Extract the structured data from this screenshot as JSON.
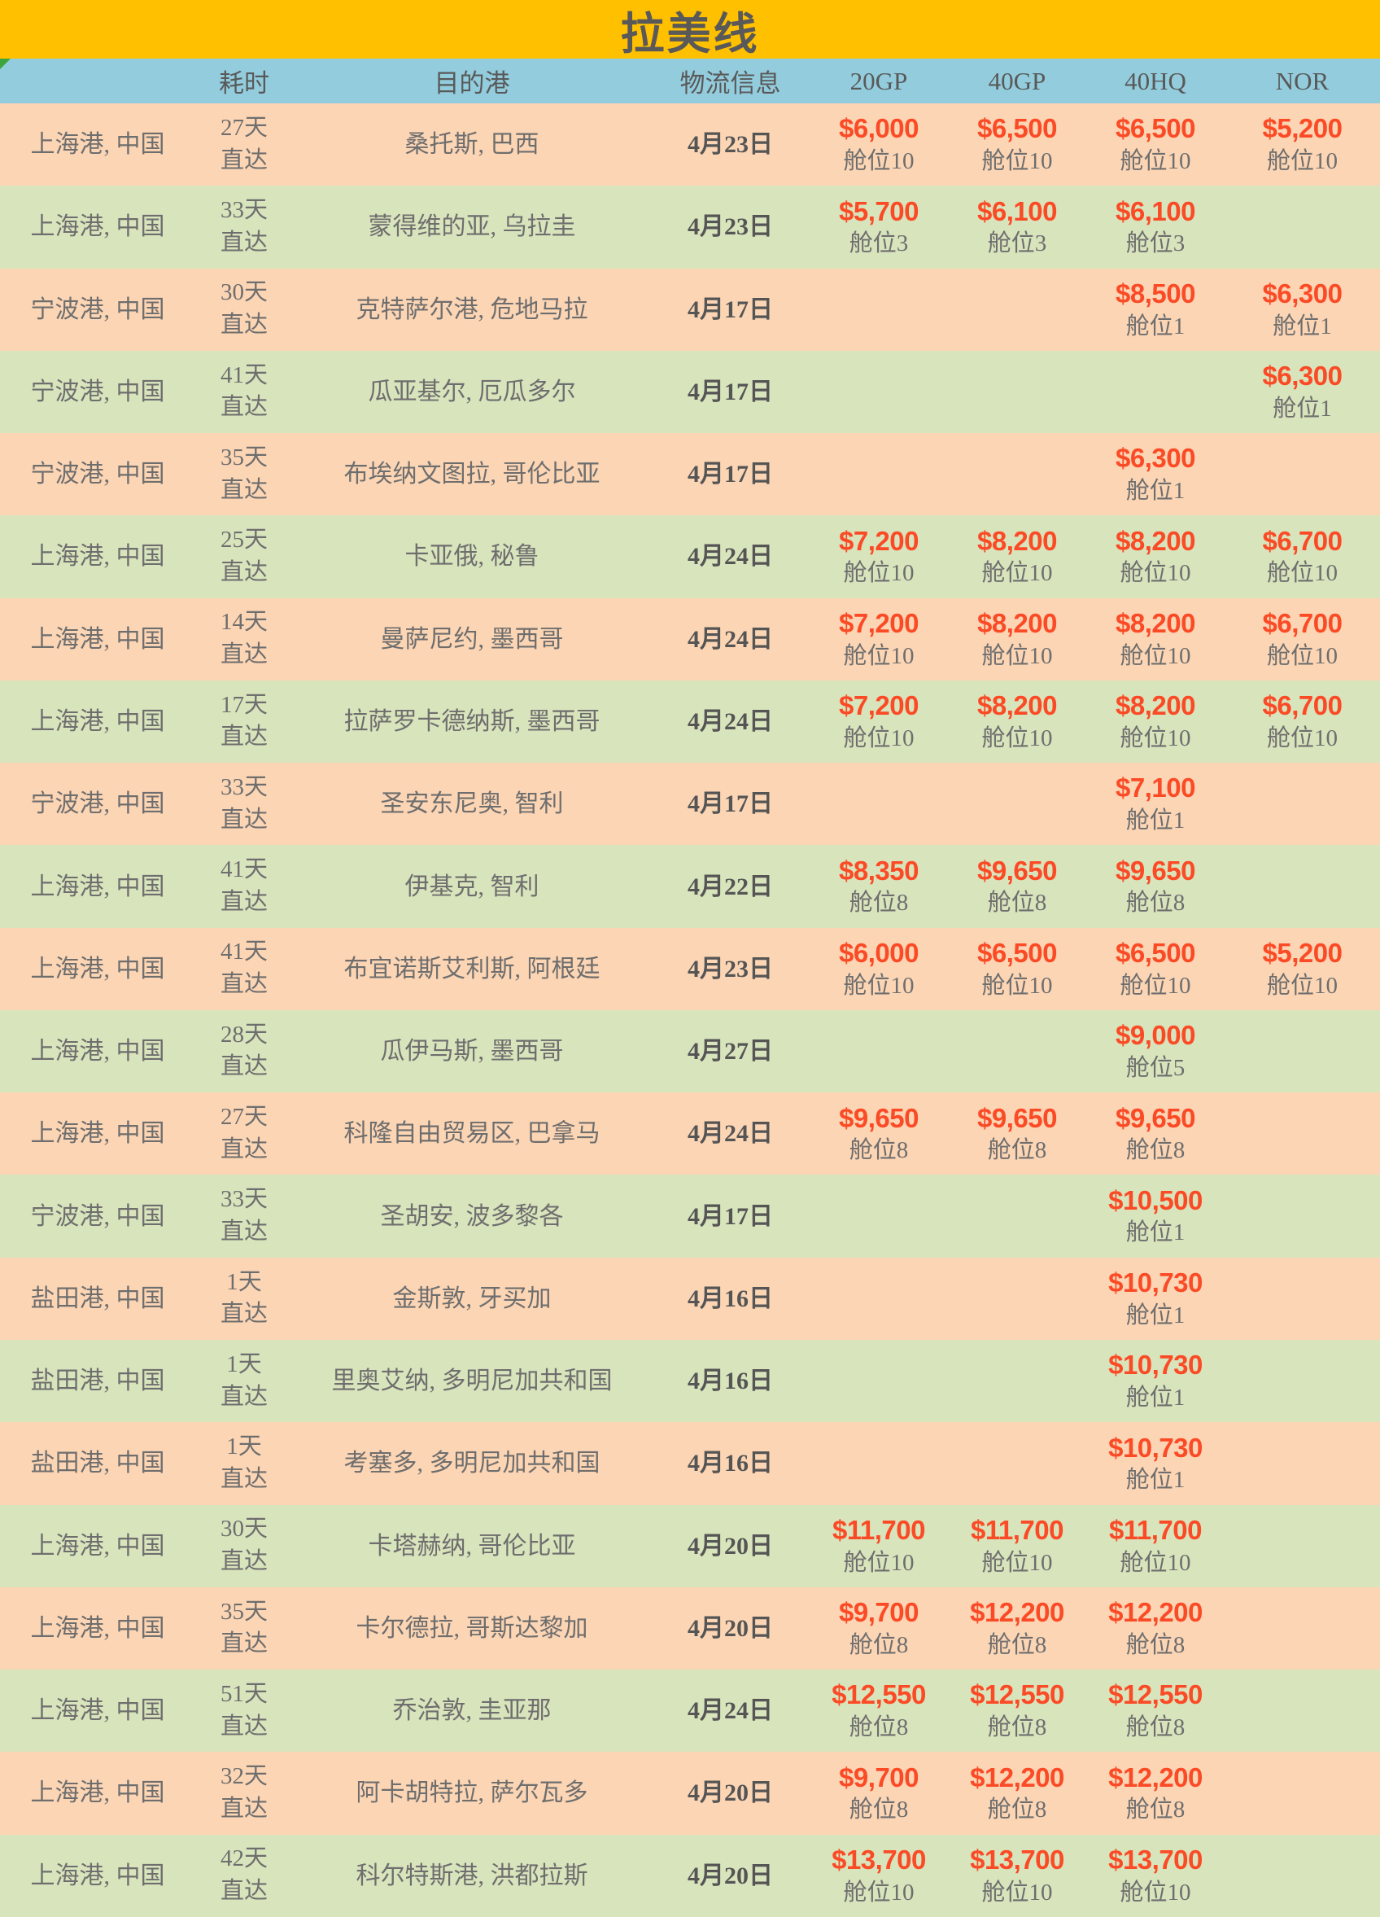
{
  "title": "拉美线",
  "columns": [
    "",
    "耗时",
    "目的港",
    "物流信息",
    "20GP",
    "40GP",
    "40HQ",
    "NOR"
  ],
  "colors": {
    "title_bg": "#FFC000",
    "header_bg": "#93CDDD",
    "row_odd": "#FCD5B4",
    "row_even": "#D8E4BC",
    "price": "#FB4A26",
    "text_gray": "#6E6E6E",
    "text_dark": "#595959",
    "corner_flag_green": "#3DA53D"
  },
  "rows": [
    {
      "origin": "上海港, 中国",
      "days": "27天",
      "transit": "直达",
      "destination": "桑托斯, 巴西",
      "etd": "4月23日",
      "rates": [
        {
          "price": "$6,000",
          "slots": "舱位10"
        },
        {
          "price": "$6,500",
          "slots": "舱位10"
        },
        {
          "price": "$6,500",
          "slots": "舱位10"
        },
        {
          "price": "$5,200",
          "slots": "舱位10"
        }
      ]
    },
    {
      "origin": "上海港, 中国",
      "days": "33天",
      "transit": "直达",
      "destination": "蒙得维的亚, 乌拉圭",
      "etd": "4月23日",
      "rates": [
        {
          "price": "$5,700",
          "slots": "舱位3"
        },
        {
          "price": "$6,100",
          "slots": "舱位3"
        },
        {
          "price": "$6,100",
          "slots": "舱位3"
        },
        null
      ]
    },
    {
      "origin": "宁波港, 中国",
      "days": "30天",
      "transit": "直达",
      "destination": "克特萨尔港, 危地马拉",
      "etd": "4月17日",
      "rates": [
        null,
        null,
        {
          "price": "$8,500",
          "slots": "舱位1"
        },
        {
          "price": "$6,300",
          "slots": "舱位1"
        }
      ]
    },
    {
      "origin": "宁波港, 中国",
      "days": "41天",
      "transit": "直达",
      "destination": "瓜亚基尔, 厄瓜多尔",
      "etd": "4月17日",
      "rates": [
        null,
        null,
        null,
        {
          "price": "$6,300",
          "slots": "舱位1"
        }
      ]
    },
    {
      "origin": "宁波港, 中国",
      "days": "35天",
      "transit": "直达",
      "destination": "布埃纳文图拉, 哥伦比亚",
      "etd": "4月17日",
      "rates": [
        null,
        null,
        {
          "price": "$6,300",
          "slots": "舱位1"
        },
        null
      ]
    },
    {
      "origin": "上海港, 中国",
      "days": "25天",
      "transit": "直达",
      "destination": "卡亚俄, 秘鲁",
      "etd": "4月24日",
      "rates": [
        {
          "price": "$7,200",
          "slots": "舱位10"
        },
        {
          "price": "$8,200",
          "slots": "舱位10"
        },
        {
          "price": "$8,200",
          "slots": "舱位10"
        },
        {
          "price": "$6,700",
          "slots": "舱位10"
        }
      ]
    },
    {
      "origin": "上海港, 中国",
      "days": "14天",
      "transit": "直达",
      "destination": "曼萨尼约, 墨西哥",
      "etd": "4月24日",
      "rates": [
        {
          "price": "$7,200",
          "slots": "舱位10"
        },
        {
          "price": "$8,200",
          "slots": "舱位10"
        },
        {
          "price": "$8,200",
          "slots": "舱位10"
        },
        {
          "price": "$6,700",
          "slots": "舱位10"
        }
      ]
    },
    {
      "origin": "上海港, 中国",
      "days": "17天",
      "transit": "直达",
      "destination": "拉萨罗卡德纳斯, 墨西哥",
      "etd": "4月24日",
      "rates": [
        {
          "price": "$7,200",
          "slots": "舱位10"
        },
        {
          "price": "$8,200",
          "slots": "舱位10"
        },
        {
          "price": "$8,200",
          "slots": "舱位10"
        },
        {
          "price": "$6,700",
          "slots": "舱位10"
        }
      ]
    },
    {
      "origin": "宁波港, 中国",
      "days": "33天",
      "transit": "直达",
      "destination": "圣安东尼奥, 智利",
      "etd": "4月17日",
      "rates": [
        null,
        null,
        {
          "price": "$7,100",
          "slots": "舱位1"
        },
        null
      ]
    },
    {
      "origin": "上海港, 中国",
      "days": "41天",
      "transit": "直达",
      "destination": "伊基克, 智利",
      "etd": "4月22日",
      "rates": [
        {
          "price": "$8,350",
          "slots": "舱位8"
        },
        {
          "price": "$9,650",
          "slots": "舱位8"
        },
        {
          "price": "$9,650",
          "slots": "舱位8"
        },
        null
      ]
    },
    {
      "origin": "上海港, 中国",
      "days": "41天",
      "transit": "直达",
      "destination": "布宜诺斯艾利斯, 阿根廷",
      "etd": "4月23日",
      "rates": [
        {
          "price": "$6,000",
          "slots": "舱位10"
        },
        {
          "price": "$6,500",
          "slots": "舱位10"
        },
        {
          "price": "$6,500",
          "slots": "舱位10"
        },
        {
          "price": "$5,200",
          "slots": "舱位10"
        }
      ]
    },
    {
      "origin": "上海港, 中国",
      "days": "28天",
      "transit": "直达",
      "destination": "瓜伊马斯, 墨西哥",
      "etd": "4月27日",
      "rates": [
        null,
        null,
        {
          "price": "$9,000",
          "slots": "舱位5"
        },
        null
      ]
    },
    {
      "origin": "上海港, 中国",
      "days": "27天",
      "transit": "直达",
      "destination": "科隆自由贸易区, 巴拿马",
      "etd": "4月24日",
      "rates": [
        {
          "price": "$9,650",
          "slots": "舱位8"
        },
        {
          "price": "$9,650",
          "slots": "舱位8"
        },
        {
          "price": "$9,650",
          "slots": "舱位8"
        },
        null
      ]
    },
    {
      "origin": "宁波港, 中国",
      "days": "33天",
      "transit": "直达",
      "destination": "圣胡安, 波多黎各",
      "etd": "4月17日",
      "rates": [
        null,
        null,
        {
          "price": "$10,500",
          "slots": "舱位1"
        },
        null
      ]
    },
    {
      "origin": "盐田港, 中国",
      "days": "1天",
      "transit": "直达",
      "destination": "金斯敦, 牙买加",
      "etd": "4月16日",
      "rates": [
        null,
        null,
        {
          "price": "$10,730",
          "slots": "舱位1"
        },
        null
      ]
    },
    {
      "origin": "盐田港, 中国",
      "days": "1天",
      "transit": "直达",
      "destination": "里奥艾纳, 多明尼加共和国",
      "etd": "4月16日",
      "rates": [
        null,
        null,
        {
          "price": "$10,730",
          "slots": "舱位1"
        },
        null
      ]
    },
    {
      "origin": "盐田港, 中国",
      "days": "1天",
      "transit": "直达",
      "destination": "考塞多, 多明尼加共和国",
      "etd": "4月16日",
      "rates": [
        null,
        null,
        {
          "price": "$10,730",
          "slots": "舱位1"
        },
        null
      ]
    },
    {
      "origin": "上海港, 中国",
      "days": "30天",
      "transit": "直达",
      "destination": "卡塔赫纳, 哥伦比亚",
      "etd": "4月20日",
      "rates": [
        {
          "price": "$11,700",
          "slots": "舱位10"
        },
        {
          "price": "$11,700",
          "slots": "舱位10"
        },
        {
          "price": "$11,700",
          "slots": "舱位10"
        },
        null
      ]
    },
    {
      "origin": "上海港, 中国",
      "days": "35天",
      "transit": "直达",
      "destination": "卡尔德拉, 哥斯达黎加",
      "etd": "4月20日",
      "rates": [
        {
          "price": "$9,700",
          "slots": "舱位8"
        },
        {
          "price": "$12,200",
          "slots": "舱位8"
        },
        {
          "price": "$12,200",
          "slots": "舱位8"
        },
        null
      ]
    },
    {
      "origin": "上海港, 中国",
      "days": "51天",
      "transit": "直达",
      "destination": "乔治敦, 圭亚那",
      "etd": "4月24日",
      "rates": [
        {
          "price": "$12,550",
          "slots": "舱位8"
        },
        {
          "price": "$12,550",
          "slots": "舱位8"
        },
        {
          "price": "$12,550",
          "slots": "舱位8"
        },
        null
      ]
    },
    {
      "origin": "上海港, 中国",
      "days": "32天",
      "transit": "直达",
      "destination": "阿卡胡特拉, 萨尔瓦多",
      "etd": "4月20日",
      "rates": [
        {
          "price": "$9,700",
          "slots": "舱位8"
        },
        {
          "price": "$12,200",
          "slots": "舱位8"
        },
        {
          "price": "$12,200",
          "slots": "舱位8"
        },
        null
      ]
    },
    {
      "origin": "上海港, 中国",
      "days": "42天",
      "transit": "直达",
      "destination": "科尔特斯港, 洪都拉斯",
      "etd": "4月20日",
      "rates": [
        {
          "price": "$13,700",
          "slots": "舱位10"
        },
        {
          "price": "$13,700",
          "slots": "舱位10"
        },
        {
          "price": "$13,700",
          "slots": "舱位10"
        },
        null
      ]
    }
  ]
}
